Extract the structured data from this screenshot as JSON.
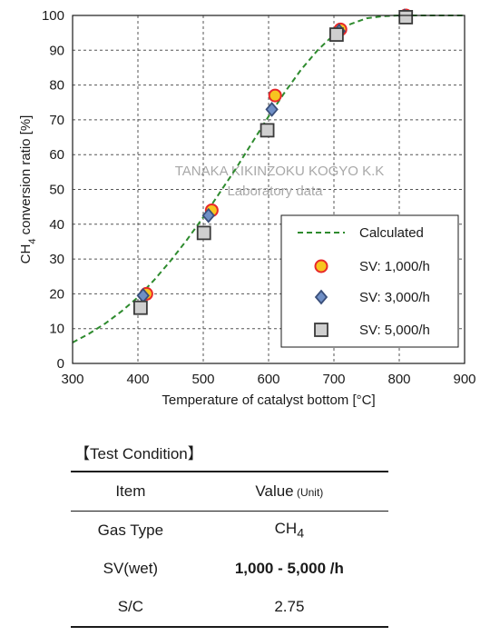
{
  "chart_data": {
    "type": "scatter",
    "xlabel": "Temperature of catalyst bottom [°C]",
    "ylabel_parts": [
      "CH",
      "4",
      " conversion ratio [%]"
    ],
    "xlim": [
      300,
      900
    ],
    "ylim": [
      0,
      100
    ],
    "xticks": [
      300,
      400,
      500,
      600,
      700,
      800,
      900
    ],
    "yticks": [
      0,
      10,
      20,
      30,
      40,
      50,
      60,
      70,
      80,
      90,
      100
    ],
    "grid": true,
    "legend_position": "bottom-right",
    "watermark": [
      "TANAKA KIKINZOKU KOGYO K.K",
      "Laboratory data"
    ],
    "series": [
      {
        "name": "Calculated",
        "kind": "line",
        "color": "#2e8b2e",
        "x": [
          300,
          325,
          350,
          375,
          400,
          425,
          450,
          475,
          500,
          525,
          550,
          575,
          600,
          625,
          650,
          675,
          700,
          725,
          750,
          775,
          800,
          825,
          850,
          875,
          900
        ],
        "y": [
          6,
          8.5,
          11.5,
          15,
          19,
          24,
          29.5,
          35.5,
          42,
          49,
          56,
          63.5,
          71,
          78,
          84.5,
          90,
          94.5,
          97.5,
          99.2,
          99.8,
          100,
          100,
          100,
          100,
          100
        ]
      },
      {
        "name": "SV: 1,000/h",
        "kind": "marker",
        "marker": "circle",
        "color": "#e8282a",
        "fill": "#f7c520",
        "x": [
          413,
          513,
          610,
          710,
          810
        ],
        "y": [
          20,
          44,
          77,
          96,
          100
        ]
      },
      {
        "name": "SV: 3,000/h",
        "kind": "marker",
        "marker": "diamond",
        "color": "#3a4f7a",
        "fill": "#6f8fc6",
        "x": [
          408,
          508,
          605,
          708,
          808
        ],
        "y": [
          19.5,
          42.5,
          73,
          95.5,
          99.8
        ]
      },
      {
        "name": "SV: 5,000/h",
        "kind": "marker",
        "marker": "square",
        "color": "#3a3a3a",
        "fill": "#cfcfcf",
        "x": [
          404,
          501,
          598,
          704,
          810
        ],
        "y": [
          16,
          37.5,
          67,
          94.5,
          99.5
        ]
      }
    ]
  },
  "conditions": {
    "title": "【Test Condition】",
    "header": {
      "item": "Item",
      "value": "Value",
      "unit": " (Unit)"
    },
    "rows": [
      {
        "item": "Gas Type",
        "value_main": "CH",
        "value_sub": "4"
      },
      {
        "item": "SV(wet)",
        "value_main": "1,000 - 5,000 /h",
        "value_sub": ""
      },
      {
        "item": "S/C",
        "value_main": "2.75",
        "value_sub": ""
      }
    ]
  }
}
